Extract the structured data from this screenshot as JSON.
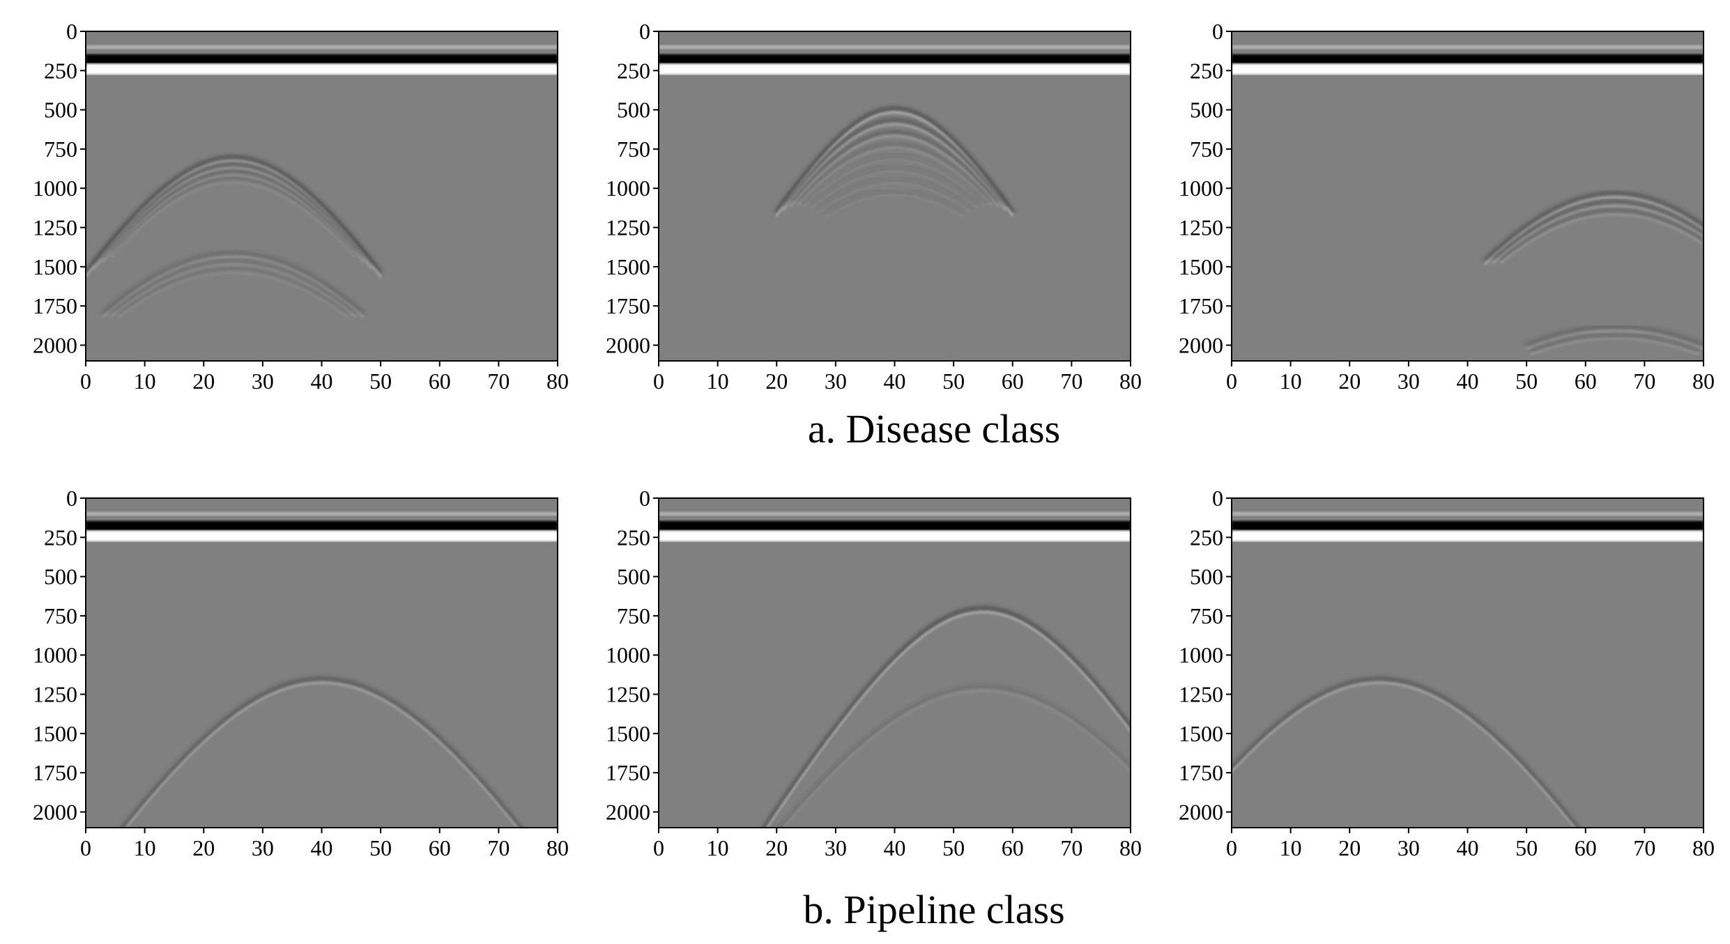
{
  "captions": {
    "row_a": "a.  Disease class",
    "row_b": "b.  Pipeline class"
  },
  "colors": {
    "background_gray": "#808080",
    "dark_band": "#000000",
    "light_band": "#ffffff",
    "axis": "#000000"
  },
  "chart_data": [
    {
      "type": "heatmap",
      "title": "",
      "xlabel": "",
      "ylabel": "",
      "xlim": [
        0,
        80
      ],
      "ylim": [
        2100,
        0
      ],
      "x_ticks": [
        "0",
        "10",
        "20",
        "30",
        "40",
        "50",
        "60",
        "70",
        "80"
      ],
      "y_ticks": [
        "0",
        "250",
        "500",
        "750",
        "1000",
        "1250",
        "1500",
        "1750",
        "2000"
      ],
      "direct_wave": {
        "dark_center": 185,
        "light_center": 240
      },
      "hyperbolas": [
        {
          "apex_x": 25,
          "apex_y": 800,
          "curvature": 0.6,
          "half_width": 25,
          "strength": 0.9,
          "count": 4,
          "spacing": 45
        },
        {
          "apex_x": 25,
          "apex_y": 1410,
          "curvature": 0.6,
          "half_width": 22,
          "strength": 0.45,
          "count": 3,
          "spacing": 50
        }
      ]
    },
    {
      "type": "heatmap",
      "title": "",
      "xlabel": "",
      "ylabel": "",
      "xlim": [
        0,
        80
      ],
      "ylim": [
        2100,
        0
      ],
      "x_ticks": [
        "0",
        "10",
        "20",
        "30",
        "40",
        "50",
        "60",
        "70",
        "80"
      ],
      "y_ticks": [
        "0",
        "250",
        "500",
        "750",
        "1000",
        "1250",
        "1500",
        "1750",
        "2000"
      ],
      "direct_wave": {
        "dark_center": 185,
        "light_center": 240
      },
      "hyperbolas": [
        {
          "apex_x": 40,
          "apex_y": 490,
          "curvature": 0.55,
          "half_width": 20,
          "strength": 1.0,
          "count": 8,
          "spacing": 75
        }
      ]
    },
    {
      "type": "heatmap",
      "title": "",
      "xlabel": "",
      "ylabel": "",
      "xlim": [
        0,
        80
      ],
      "ylim": [
        2100,
        0
      ],
      "x_ticks": [
        "0",
        "10",
        "20",
        "30",
        "40",
        "50",
        "60",
        "70",
        "80"
      ],
      "y_ticks": [
        "0",
        "250",
        "500",
        "750",
        "1000",
        "1250",
        "1500",
        "1750",
        "2000"
      ],
      "direct_wave": {
        "dark_center": 185,
        "light_center": 240
      },
      "hyperbolas": [
        {
          "apex_x": 65,
          "apex_y": 1030,
          "curvature": 0.5,
          "half_width": 22,
          "strength": 0.85,
          "count": 3,
          "spacing": 55
        },
        {
          "apex_x": 65,
          "apex_y": 1880,
          "curvature": 0.5,
          "half_width": 15,
          "strength": 0.5,
          "count": 2,
          "spacing": 50
        }
      ]
    },
    {
      "type": "heatmap",
      "title": "",
      "xlabel": "",
      "ylabel": "",
      "xlim": [
        0,
        80
      ],
      "ylim": [
        2100,
        0
      ],
      "x_ticks": [
        "0",
        "10",
        "20",
        "30",
        "40",
        "50",
        "60",
        "70",
        "80"
      ],
      "y_ticks": [
        "0",
        "250",
        "500",
        "750",
        "1000",
        "1250",
        "1500",
        "1750",
        "2000"
      ],
      "direct_wave": {
        "dark_center": 185,
        "light_center": 240
      },
      "hyperbolas": [
        {
          "apex_x": 40,
          "apex_y": 1150,
          "curvature": 0.6,
          "half_width": 42,
          "strength": 0.8,
          "count": 1,
          "spacing": 0
        }
      ]
    },
    {
      "type": "heatmap",
      "title": "",
      "xlabel": "",
      "ylabel": "",
      "xlim": [
        0,
        80
      ],
      "ylim": [
        2100,
        0
      ],
      "x_ticks": [
        "0",
        "10",
        "20",
        "30",
        "40",
        "50",
        "60",
        "70",
        "80"
      ],
      "y_ticks": [
        "0",
        "250",
        "500",
        "750",
        "1000",
        "1250",
        "1500",
        "1750",
        "2000"
      ],
      "direct_wave": {
        "dark_center": 185,
        "light_center": 240
      },
      "hyperbolas": [
        {
          "apex_x": 55,
          "apex_y": 700,
          "curvature": 0.55,
          "half_width": 42,
          "strength": 1.0,
          "count": 1,
          "spacing": 0
        },
        {
          "apex_x": 55,
          "apex_y": 1200,
          "curvature": 0.55,
          "half_width": 35,
          "strength": 0.3,
          "count": 1,
          "spacing": 0
        }
      ]
    },
    {
      "type": "heatmap",
      "title": "",
      "xlabel": "",
      "ylabel": "",
      "xlim": [
        0,
        80
      ],
      "ylim": [
        2100,
        0
      ],
      "x_ticks": [
        "0",
        "10",
        "20",
        "30",
        "40",
        "50",
        "60",
        "70",
        "80"
      ],
      "y_ticks": [
        "0",
        "250",
        "500",
        "750",
        "1000",
        "1250",
        "1500",
        "1750",
        "2000"
      ],
      "direct_wave": {
        "dark_center": 185,
        "light_center": 240
      },
      "hyperbolas": [
        {
          "apex_x": 25,
          "apex_y": 1150,
          "curvature": 0.6,
          "half_width": 42,
          "strength": 0.8,
          "count": 1,
          "spacing": 0
        }
      ]
    }
  ]
}
